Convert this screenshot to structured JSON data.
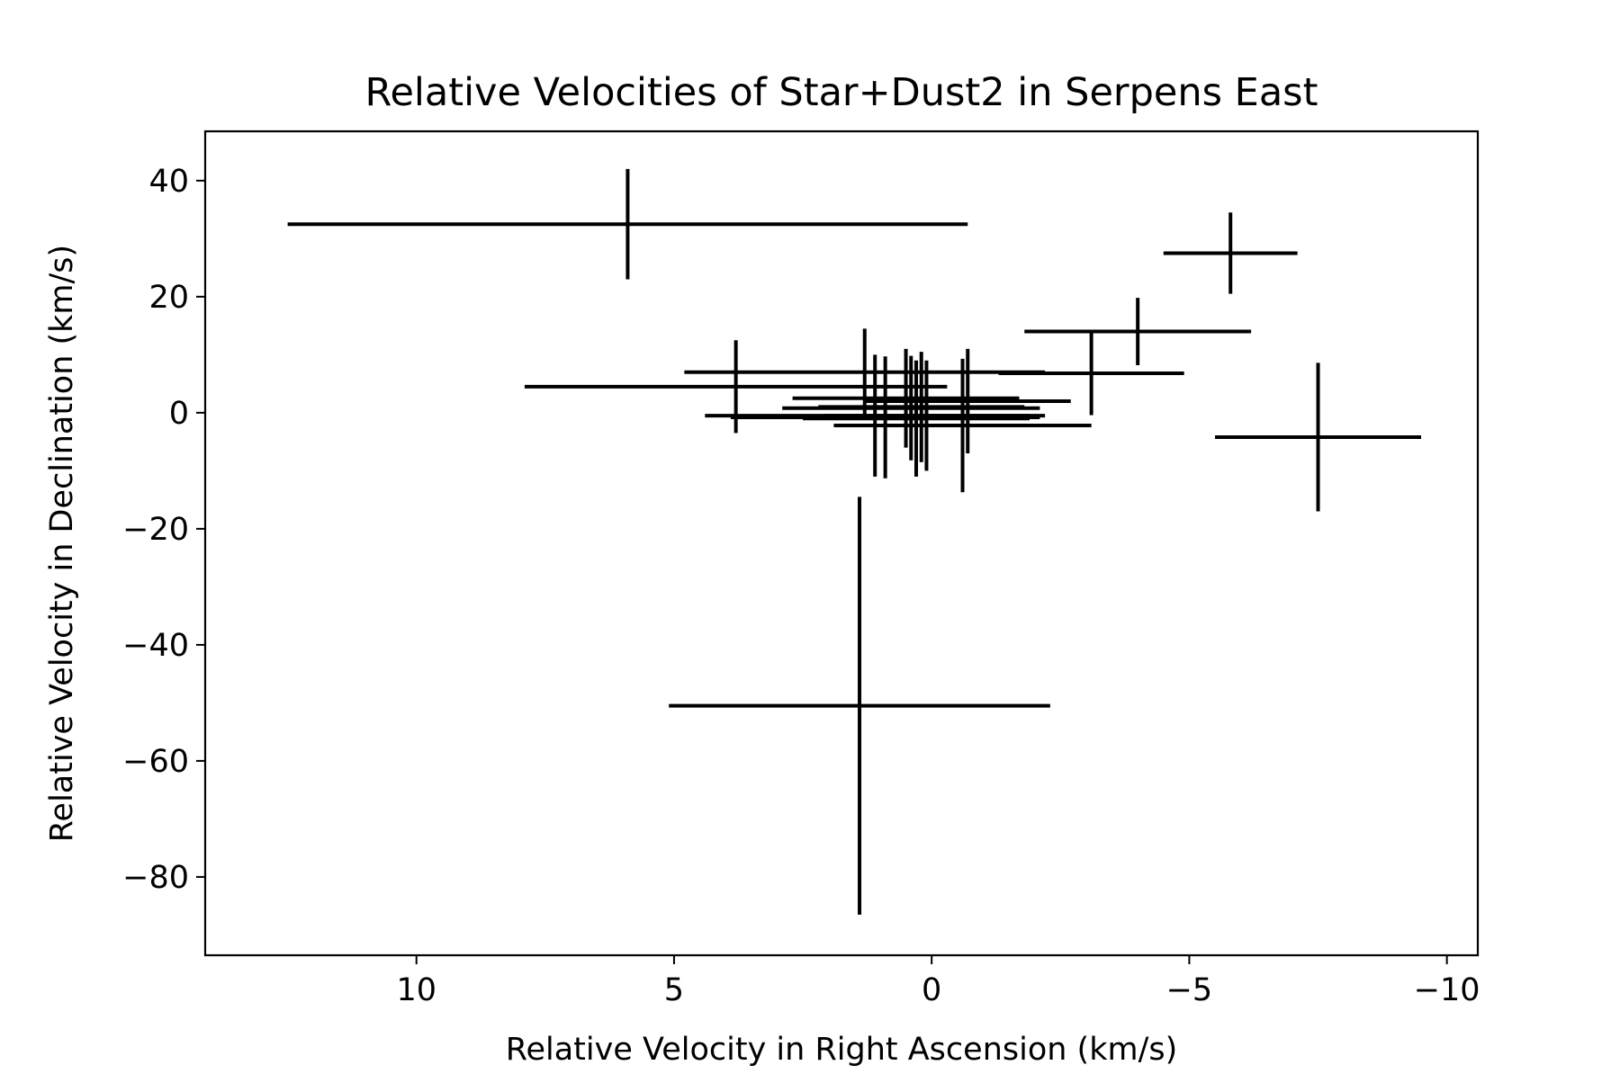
{
  "chart_data": {
    "type": "scatter",
    "title": "Relative Velocities of Star+Dust2 in Serpens East",
    "xlabel": "Relative Velocity in Right Ascension (km/s)",
    "ylabel": "Relative Velocity in Declination (km/s)",
    "xlim": [
      14.1,
      -10.6
    ],
    "ylim": [
      -93.5,
      48.5
    ],
    "x_inverted": true,
    "grid": false,
    "legend": "none",
    "x_ticks": [
      10,
      5,
      0,
      -5,
      -10
    ],
    "x_tick_labels": [
      "10",
      "5",
      "0",
      "−5",
      "−10"
    ],
    "y_ticks": [
      40,
      20,
      0,
      -20,
      -40,
      -60,
      -80
    ],
    "y_tick_labels": [
      "40",
      "20",
      "0",
      "−20",
      "−40",
      "−60",
      "−80"
    ],
    "marker": "none",
    "error_bar_color": "#000000",
    "points": [
      {
        "x": 5.9,
        "y": 32.5,
        "xerr": 6.6,
        "yerr": 9.5
      },
      {
        "x": -5.8,
        "y": 27.5,
        "xerr": 1.3,
        "yerr": 7.0
      },
      {
        "x": -4.0,
        "y": 14.0,
        "xerr": 2.2,
        "yerr": 5.8
      },
      {
        "x": -3.1,
        "y": 6.8,
        "xerr": 1.8,
        "yerr": 7.2
      },
      {
        "x": -7.5,
        "y": -4.2,
        "xerr": 2.0,
        "yerr": 12.8
      },
      {
        "x": 3.8,
        "y": 4.5,
        "xerr": 4.1,
        "yerr": 8.0
      },
      {
        "x": 1.3,
        "y": 7.0,
        "xerr": 3.5,
        "yerr": 7.5
      },
      {
        "x": 1.1,
        "y": -0.5,
        "xerr": 3.3,
        "yerr": 10.5
      },
      {
        "x": 0.9,
        "y": -0.8,
        "xerr": 3.0,
        "yerr": 10.5
      },
      {
        "x": 0.5,
        "y": 2.5,
        "xerr": 2.2,
        "yerr": 8.5
      },
      {
        "x": 0.4,
        "y": 0.8,
        "xerr": 2.5,
        "yerr": 9.0
      },
      {
        "x": 0.3,
        "y": -1.0,
        "xerr": 2.2,
        "yerr": 10.0
      },
      {
        "x": 0.2,
        "y": 1.0,
        "xerr": 2.0,
        "yerr": 9.5
      },
      {
        "x": 0.1,
        "y": -0.5,
        "xerr": 2.0,
        "yerr": 9.5
      },
      {
        "x": -0.6,
        "y": -2.2,
        "xerr": 2.5,
        "yerr": 11.5
      },
      {
        "x": -0.7,
        "y": 2.0,
        "xerr": 2.0,
        "yerr": 9.0
      },
      {
        "x": 1.4,
        "y": -50.5,
        "xerr": 3.7,
        "yerr": 36.0
      }
    ]
  }
}
